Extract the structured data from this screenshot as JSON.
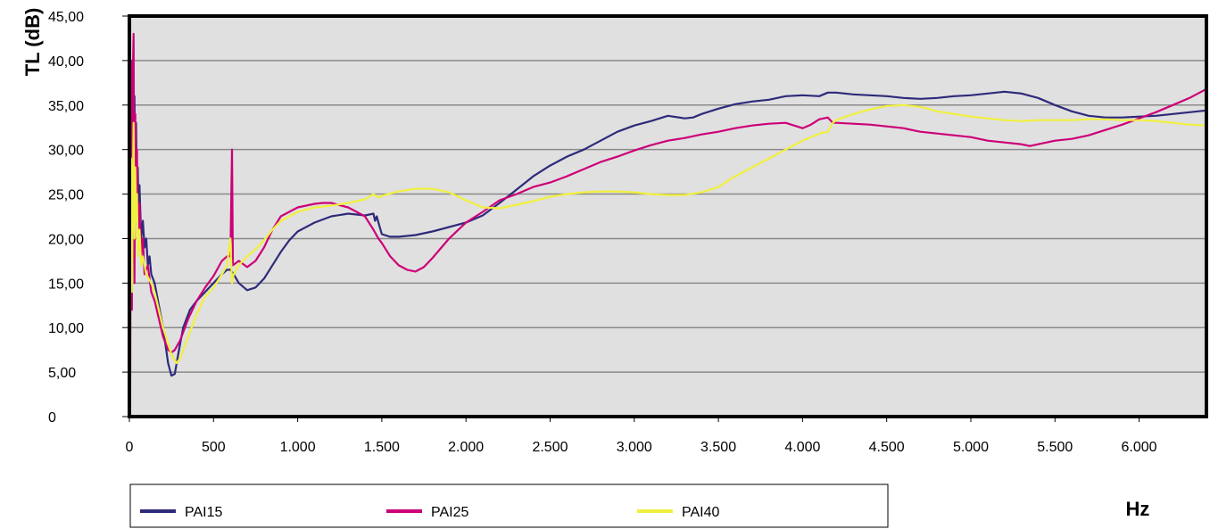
{
  "chart_data": {
    "type": "line",
    "title": "",
    "ylabel": "TL (dB)",
    "xlabel": "Hz",
    "xlim": [
      0,
      6400
    ],
    "ylim": [
      0,
      45
    ],
    "x_ticks": [
      0,
      500,
      1000,
      1500,
      2000,
      2500,
      3000,
      3500,
      4000,
      4500,
      5000,
      5500,
      6000
    ],
    "x_tick_labels": [
      "0",
      "500",
      "1.000",
      "1.500",
      "2.000",
      "2.500",
      "3.000",
      "3.500",
      "4.000",
      "4.500",
      "5.000",
      "5.500",
      "6.000"
    ],
    "y_ticks": [
      0,
      5,
      10,
      15,
      20,
      25,
      30,
      35,
      40,
      45
    ],
    "y_tick_labels": [
      "0",
      "5,00",
      "10,00",
      "15,00",
      "20,00",
      "25,00",
      "30,00",
      "35,00",
      "40,00",
      "45,00"
    ],
    "grid": "horizontal",
    "plot_background": "#e0e0e0",
    "legend_position": "bottom",
    "series": [
      {
        "name": "PAI15",
        "color": "#2e2a7a",
        "points": [
          [
            0,
            25
          ],
          [
            10,
            38
          ],
          [
            15,
            20
          ],
          [
            20,
            32
          ],
          [
            25,
            28
          ],
          [
            30,
            36
          ],
          [
            35,
            24
          ],
          [
            40,
            33
          ],
          [
            45,
            24
          ],
          [
            50,
            28
          ],
          [
            55,
            22
          ],
          [
            60,
            26
          ],
          [
            70,
            20
          ],
          [
            80,
            22
          ],
          [
            90,
            19
          ],
          [
            100,
            20
          ],
          [
            110,
            17
          ],
          [
            120,
            18
          ],
          [
            130,
            16
          ],
          [
            150,
            15
          ],
          [
            200,
            10
          ],
          [
            230,
            6
          ],
          [
            250,
            4.6
          ],
          [
            270,
            4.8
          ],
          [
            290,
            7
          ],
          [
            320,
            10
          ],
          [
            360,
            12
          ],
          [
            400,
            13
          ],
          [
            450,
            14
          ],
          [
            500,
            15
          ],
          [
            550,
            16
          ],
          [
            580,
            16.5
          ],
          [
            600,
            16.5
          ],
          [
            620,
            16
          ],
          [
            650,
            15
          ],
          [
            700,
            14.2
          ],
          [
            750,
            14.5
          ],
          [
            800,
            15.5
          ],
          [
            850,
            17
          ],
          [
            900,
            18.5
          ],
          [
            950,
            19.8
          ],
          [
            1000,
            20.8
          ],
          [
            1100,
            21.8
          ],
          [
            1200,
            22.5
          ],
          [
            1300,
            22.8
          ],
          [
            1400,
            22.6
          ],
          [
            1450,
            22.8
          ],
          [
            1460,
            22
          ],
          [
            1470,
            22.5
          ],
          [
            1480,
            21.8
          ],
          [
            1500,
            20.5
          ],
          [
            1550,
            20.2
          ],
          [
            1600,
            20.2
          ],
          [
            1700,
            20.4
          ],
          [
            1800,
            20.8
          ],
          [
            1900,
            21.3
          ],
          [
            2000,
            21.8
          ],
          [
            2100,
            22.6
          ],
          [
            2200,
            24
          ],
          [
            2300,
            25.5
          ],
          [
            2400,
            27
          ],
          [
            2500,
            28.2
          ],
          [
            2600,
            29.2
          ],
          [
            2700,
            30
          ],
          [
            2800,
            31
          ],
          [
            2900,
            32
          ],
          [
            3000,
            32.7
          ],
          [
            3100,
            33.2
          ],
          [
            3200,
            33.8
          ],
          [
            3300,
            33.5
          ],
          [
            3350,
            33.6
          ],
          [
            3400,
            34
          ],
          [
            3500,
            34.6
          ],
          [
            3600,
            35.1
          ],
          [
            3700,
            35.4
          ],
          [
            3800,
            35.6
          ],
          [
            3900,
            36
          ],
          [
            4000,
            36.1
          ],
          [
            4100,
            36
          ],
          [
            4150,
            36.4
          ],
          [
            4200,
            36.4
          ],
          [
            4300,
            36.2
          ],
          [
            4400,
            36.1
          ],
          [
            4500,
            36
          ],
          [
            4600,
            35.8
          ],
          [
            4700,
            35.7
          ],
          [
            4800,
            35.8
          ],
          [
            4900,
            36
          ],
          [
            5000,
            36.1
          ],
          [
            5100,
            36.3
          ],
          [
            5200,
            36.5
          ],
          [
            5300,
            36.3
          ],
          [
            5400,
            35.8
          ],
          [
            5500,
            35
          ],
          [
            5600,
            34.3
          ],
          [
            5700,
            33.8
          ],
          [
            5800,
            33.6
          ],
          [
            5900,
            33.6
          ],
          [
            6000,
            33.7
          ],
          [
            6100,
            33.8
          ],
          [
            6200,
            34
          ],
          [
            6300,
            34.2
          ],
          [
            6400,
            34.4
          ]
        ]
      },
      {
        "name": "PAI25",
        "color": "#cc0077",
        "points": [
          [
            0,
            5
          ],
          [
            5,
            2
          ],
          [
            10,
            40
          ],
          [
            15,
            12
          ],
          [
            20,
            38
          ],
          [
            25,
            43
          ],
          [
            30,
            15
          ],
          [
            35,
            34
          ],
          [
            40,
            27
          ],
          [
            45,
            30
          ],
          [
            50,
            20
          ],
          [
            60,
            24
          ],
          [
            70,
            18
          ],
          [
            80,
            20
          ],
          [
            90,
            16
          ],
          [
            110,
            17
          ],
          [
            130,
            14
          ],
          [
            150,
            13
          ],
          [
            200,
            9
          ],
          [
            230,
            7.5
          ],
          [
            250,
            7.2
          ],
          [
            270,
            7.5
          ],
          [
            300,
            8.5
          ],
          [
            350,
            11
          ],
          [
            400,
            13
          ],
          [
            450,
            14.5
          ],
          [
            500,
            15.8
          ],
          [
            550,
            17.5
          ],
          [
            580,
            18
          ],
          [
            600,
            18
          ],
          [
            610,
            30
          ],
          [
            615,
            17
          ],
          [
            650,
            17.5
          ],
          [
            700,
            16.8
          ],
          [
            750,
            17.5
          ],
          [
            800,
            19
          ],
          [
            850,
            21
          ],
          [
            900,
            22.5
          ],
          [
            1000,
            23.5
          ],
          [
            1100,
            23.9
          ],
          [
            1150,
            24
          ],
          [
            1200,
            24
          ],
          [
            1300,
            23.5
          ],
          [
            1400,
            22.5
          ],
          [
            1450,
            21
          ],
          [
            1480,
            20
          ],
          [
            1500,
            19.5
          ],
          [
            1550,
            18
          ],
          [
            1600,
            17
          ],
          [
            1650,
            16.5
          ],
          [
            1700,
            16.3
          ],
          [
            1750,
            16.8
          ],
          [
            1800,
            17.8
          ],
          [
            1900,
            20
          ],
          [
            2000,
            21.8
          ],
          [
            2100,
            23
          ],
          [
            2200,
            24.3
          ],
          [
            2300,
            25
          ],
          [
            2400,
            25.8
          ],
          [
            2500,
            26.3
          ],
          [
            2600,
            27
          ],
          [
            2700,
            27.8
          ],
          [
            2800,
            28.6
          ],
          [
            2900,
            29.2
          ],
          [
            3000,
            29.9
          ],
          [
            3100,
            30.5
          ],
          [
            3200,
            31
          ],
          [
            3300,
            31.3
          ],
          [
            3400,
            31.7
          ],
          [
            3500,
            32
          ],
          [
            3600,
            32.4
          ],
          [
            3700,
            32.7
          ],
          [
            3800,
            32.9
          ],
          [
            3900,
            33
          ],
          [
            3950,
            32.7
          ],
          [
            4000,
            32.4
          ],
          [
            4050,
            32.8
          ],
          [
            4100,
            33.4
          ],
          [
            4150,
            33.6
          ],
          [
            4180,
            33
          ],
          [
            4200,
            33
          ],
          [
            4300,
            32.9
          ],
          [
            4400,
            32.8
          ],
          [
            4500,
            32.6
          ],
          [
            4600,
            32.4
          ],
          [
            4700,
            32
          ],
          [
            4800,
            31.8
          ],
          [
            4900,
            31.6
          ],
          [
            5000,
            31.4
          ],
          [
            5100,
            31
          ],
          [
            5200,
            30.8
          ],
          [
            5300,
            30.6
          ],
          [
            5350,
            30.4
          ],
          [
            5400,
            30.6
          ],
          [
            5500,
            31
          ],
          [
            5600,
            31.2
          ],
          [
            5700,
            31.6
          ],
          [
            5800,
            32.2
          ],
          [
            5900,
            32.8
          ],
          [
            6000,
            33.5
          ],
          [
            6100,
            34.2
          ],
          [
            6200,
            35
          ],
          [
            6300,
            35.8
          ],
          [
            6400,
            36.8
          ]
        ]
      },
      {
        "name": "PAI40",
        "color": "#f0f040",
        "points": [
          [
            0,
            20
          ],
          [
            10,
            29
          ],
          [
            15,
            14
          ],
          [
            20,
            25
          ],
          [
            25,
            33
          ],
          [
            30,
            20
          ],
          [
            35,
            28
          ],
          [
            40,
            22
          ],
          [
            45,
            25
          ],
          [
            50,
            18
          ],
          [
            60,
            21
          ],
          [
            70,
            17
          ],
          [
            80,
            18
          ],
          [
            100,
            16
          ],
          [
            130,
            15
          ],
          [
            150,
            14
          ],
          [
            200,
            10
          ],
          [
            250,
            7
          ],
          [
            280,
            6
          ],
          [
            300,
            6.5
          ],
          [
            350,
            9
          ],
          [
            400,
            11.5
          ],
          [
            450,
            13.5
          ],
          [
            500,
            14.5
          ],
          [
            550,
            16
          ],
          [
            580,
            17
          ],
          [
            600,
            20
          ],
          [
            610,
            15
          ],
          [
            620,
            16
          ],
          [
            650,
            17
          ],
          [
            700,
            18
          ],
          [
            750,
            18.8
          ],
          [
            800,
            19.8
          ],
          [
            850,
            21
          ],
          [
            900,
            22
          ],
          [
            1000,
            23
          ],
          [
            1100,
            23.5
          ],
          [
            1200,
            23.7
          ],
          [
            1300,
            24
          ],
          [
            1400,
            24.4
          ],
          [
            1450,
            25
          ],
          [
            1480,
            24.6
          ],
          [
            1500,
            24.8
          ],
          [
            1600,
            25.3
          ],
          [
            1700,
            25.6
          ],
          [
            1800,
            25.6
          ],
          [
            1900,
            25.2
          ],
          [
            2000,
            24.3
          ],
          [
            2100,
            23.5
          ],
          [
            2200,
            23.4
          ],
          [
            2300,
            23.8
          ],
          [
            2400,
            24.2
          ],
          [
            2500,
            24.7
          ],
          [
            2600,
            25
          ],
          [
            2700,
            25.2
          ],
          [
            2800,
            25.3
          ],
          [
            2900,
            25.3
          ],
          [
            3000,
            25.2
          ],
          [
            3100,
            25
          ],
          [
            3200,
            24.9
          ],
          [
            3300,
            24.9
          ],
          [
            3400,
            25.2
          ],
          [
            3500,
            25.8
          ],
          [
            3600,
            27
          ],
          [
            3700,
            28
          ],
          [
            3800,
            29
          ],
          [
            3900,
            30
          ],
          [
            4000,
            31
          ],
          [
            4100,
            31.8
          ],
          [
            4150,
            32
          ],
          [
            4180,
            33
          ],
          [
            4200,
            33.3
          ],
          [
            4300,
            34
          ],
          [
            4400,
            34.5
          ],
          [
            4500,
            34.9
          ],
          [
            4600,
            35
          ],
          [
            4700,
            34.8
          ],
          [
            4800,
            34.3
          ],
          [
            4900,
            34
          ],
          [
            5000,
            33.7
          ],
          [
            5100,
            33.5
          ],
          [
            5200,
            33.3
          ],
          [
            5300,
            33.2
          ],
          [
            5400,
            33.3
          ],
          [
            5500,
            33.3
          ],
          [
            5600,
            33.3
          ],
          [
            5700,
            33.4
          ],
          [
            5800,
            33.4
          ],
          [
            5900,
            33.3
          ],
          [
            6000,
            33.3
          ],
          [
            6100,
            33.2
          ],
          [
            6200,
            33
          ],
          [
            6300,
            32.8
          ],
          [
            6400,
            32.7
          ]
        ]
      }
    ]
  }
}
